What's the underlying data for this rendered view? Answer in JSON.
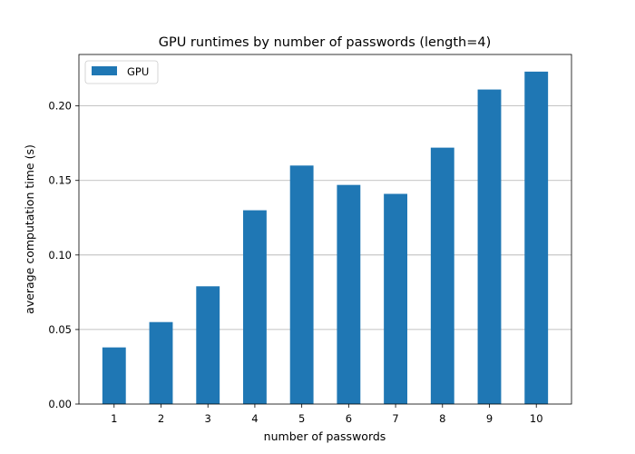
{
  "chart_data": {
    "type": "bar",
    "title": "GPU runtimes by number of passwords (length=4)",
    "xlabel": "number of passwords",
    "ylabel": "average computation time (s)",
    "categories": [
      "1",
      "2",
      "3",
      "4",
      "5",
      "6",
      "7",
      "8",
      "9",
      "10"
    ],
    "series": [
      {
        "name": "GPU",
        "values": [
          0.038,
          0.055,
          0.079,
          0.13,
          0.16,
          0.147,
          0.141,
          0.172,
          0.211,
          0.223
        ]
      }
    ],
    "ylim": [
      0,
      0.2345
    ],
    "yticks": [
      0.0,
      0.05,
      0.1,
      0.15,
      0.2
    ],
    "ytick_labels": [
      "0.00",
      "0.05",
      "0.10",
      "0.15",
      "0.20"
    ],
    "grid": "y-major",
    "legend": "top-left",
    "colors": {
      "bar": "#1f77b4",
      "grid": "#b0b0b0",
      "axis": "#000000"
    }
  }
}
